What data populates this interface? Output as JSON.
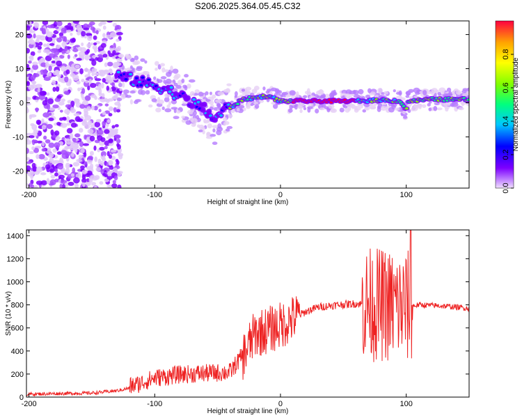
{
  "title": "S206.2025.364.05.45.C32",
  "colors": {
    "line": "#ee2222",
    "frame": "#000000",
    "background": "#ffffff"
  },
  "chart_data": [
    {
      "type": "heatmap",
      "name": "spectrogram",
      "xlabel": "Height of straight line (km)",
      "ylabel": "Frequency (Hz)",
      "xlim": [
        -202,
        150
      ],
      "ylim": [
        -25,
        24
      ],
      "xticks": [
        "-200",
        "-100",
        "0",
        "100"
      ],
      "xtick_values": [
        -200,
        -100,
        0,
        100
      ],
      "yticks": [
        "20",
        "10",
        "0",
        "-10",
        "-20"
      ],
      "ytick_values": [
        20,
        10,
        0,
        -10,
        -20
      ],
      "colorbar": {
        "label": "Normalized spectral amplitude",
        "range": [
          0,
          1
        ],
        "ticks": [
          "0.0",
          "0.2",
          "0.4",
          "0.6",
          "0.8"
        ],
        "tick_values": [
          0.0,
          0.2,
          0.4,
          0.6,
          0.8
        ],
        "colormap": [
          "#e6d0f5",
          "#7d00ff",
          "#0000ff",
          "#00c8ff",
          "#00ff7f",
          "#7fff00",
          "#ffff00",
          "#ffa500",
          "#ff0040"
        ]
      },
      "ridge_points": [
        [
          -130,
          8
        ],
        [
          -120,
          7
        ],
        [
          -110,
          6
        ],
        [
          -100,
          5
        ],
        [
          -90,
          4
        ],
        [
          -80,
          2
        ],
        [
          -70,
          0
        ],
        [
          -60,
          -2
        ],
        [
          -52,
          -5
        ],
        [
          -45,
          -2
        ],
        [
          -38,
          -1
        ],
        [
          -30,
          1
        ],
        [
          -20,
          1.5
        ],
        [
          -10,
          2
        ],
        [
          0,
          0.5
        ],
        [
          15,
          0.5
        ],
        [
          40,
          0.5
        ],
        [
          60,
          0.5
        ],
        [
          80,
          0.8
        ],
        [
          95,
          0.5
        ],
        [
          100,
          -2
        ],
        [
          102,
          0.5
        ],
        [
          120,
          1
        ],
        [
          150,
          1
        ]
      ]
    },
    {
      "type": "line",
      "name": "snr",
      "xlabel": "Height of straight line (km)",
      "ylabel": "SNR (10 * v/v)",
      "xlim": [
        -202,
        150
      ],
      "ylim": [
        0,
        1450
      ],
      "xticks": [
        "-200",
        "-100",
        "0",
        "100"
      ],
      "xtick_values": [
        -200,
        -100,
        0,
        100
      ],
      "yticks": [
        "0",
        "200",
        "400",
        "600",
        "800",
        "1000",
        "1200",
        "1400"
      ],
      "ytick_values": [
        0,
        200,
        400,
        600,
        800,
        1000,
        1200,
        1400
      ],
      "envelope": [
        [
          -202,
          25
        ],
        [
          -180,
          30
        ],
        [
          -150,
          35
        ],
        [
          -130,
          55
        ],
        [
          -115,
          90
        ],
        [
          -100,
          150
        ],
        [
          -80,
          180
        ],
        [
          -60,
          190
        ],
        [
          -40,
          200
        ],
        [
          -30,
          350
        ],
        [
          -20,
          550
        ],
        [
          -10,
          580
        ],
        [
          0,
          620
        ],
        [
          10,
          680
        ],
        [
          20,
          740
        ],
        [
          30,
          780
        ],
        [
          45,
          800
        ],
        [
          60,
          810
        ],
        [
          80,
          800
        ],
        [
          100,
          780
        ],
        [
          110,
          800
        ],
        [
          130,
          790
        ],
        [
          150,
          770
        ]
      ]
    }
  ]
}
